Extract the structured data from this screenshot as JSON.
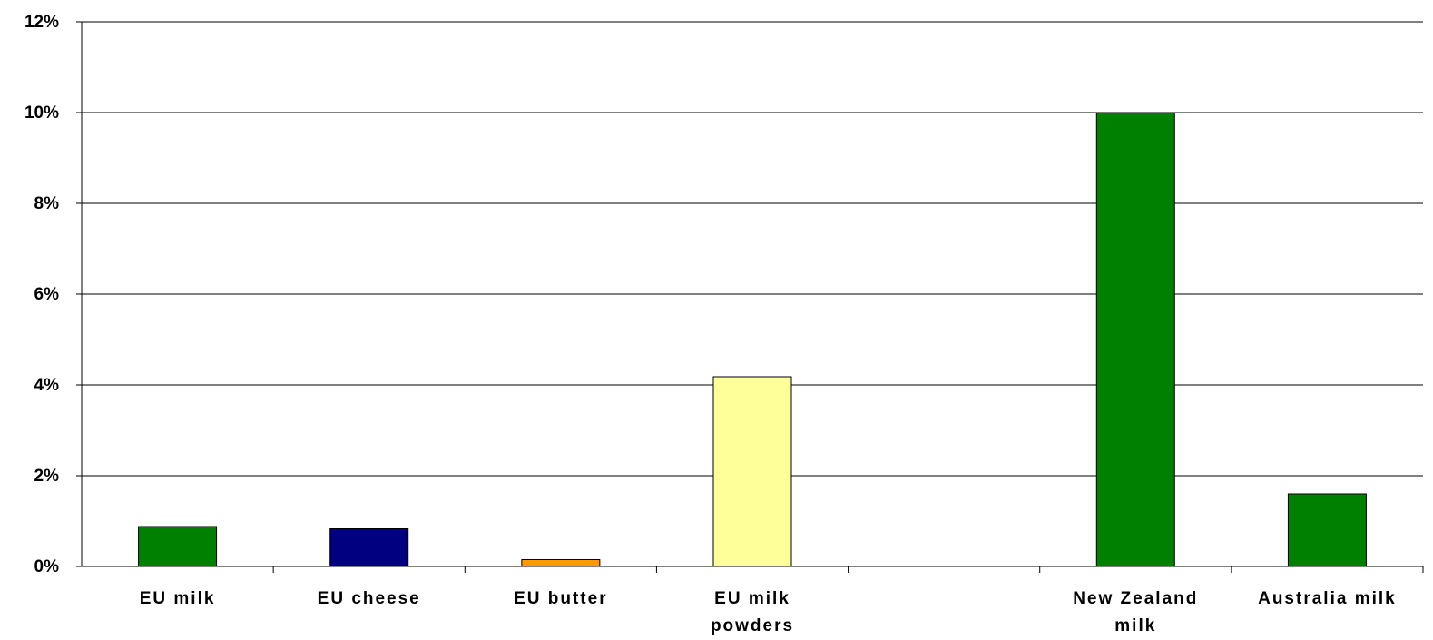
{
  "chart_data": {
    "type": "bar",
    "categories": [
      [
        "EU milk"
      ],
      [
        "EU cheese"
      ],
      [
        "EU butter"
      ],
      [
        "EU milk",
        "powders"
      ],
      [
        ""
      ],
      [
        "New Zealand",
        "milk"
      ],
      [
        "Australia milk"
      ]
    ],
    "values": [
      0.88,
      0.83,
      0.15,
      4.18,
      0,
      10.0,
      1.6
    ],
    "colors": [
      "#008000",
      "#000080",
      "#FF9900",
      "#FFFF99",
      "#ffffff",
      "#008000",
      "#008000"
    ],
    "ylim": [
      0,
      12
    ],
    "yticks": [
      0,
      2,
      4,
      6,
      8,
      10,
      12
    ],
    "ytick_labels": [
      "0%",
      "2%",
      "4%",
      "6%",
      "8%",
      "10%",
      "12%"
    ],
    "grid": true,
    "title": "",
    "xlabel": "",
    "ylabel": ""
  }
}
